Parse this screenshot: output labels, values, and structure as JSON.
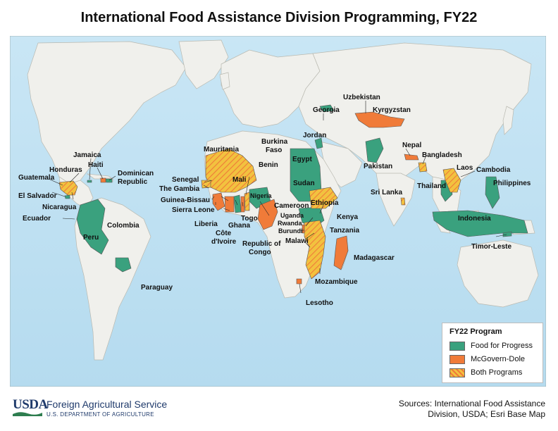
{
  "title": "International Food Assistance Division Programming, FY22",
  "colors": {
    "food_for_progress": "#3aa17e",
    "mcgovern_dole": "#f07b39",
    "both_programs": "#f2c23f",
    "ocean": "#bfe0f2",
    "land": "#f0f0ec"
  },
  "legend": {
    "title": "FY22 Program",
    "items": [
      {
        "label": "Food for Progress",
        "swatch": "solid-green"
      },
      {
        "label": "McGovern-Dole",
        "swatch": "solid-orange"
      },
      {
        "label": "Both Programs",
        "swatch": "hatched-yellow-orange"
      }
    ]
  },
  "countries": [
    {
      "name": "Georgia",
      "program": "Food for Progress"
    },
    {
      "name": "Uzbekistan",
      "program": "McGovern-Dole"
    },
    {
      "name": "Kyrgyzstan",
      "program": "McGovern-Dole"
    },
    {
      "name": "Jordan",
      "program": "Food for Progress"
    },
    {
      "name": "Egypt",
      "program": "Food for Progress"
    },
    {
      "name": "Sudan",
      "program": "Food for Progress"
    },
    {
      "name": "Pakistan",
      "program": "Food for Progress"
    },
    {
      "name": "Nepal",
      "program": "McGovern-Dole"
    },
    {
      "name": "Bangladesh",
      "program": "Both Programs"
    },
    {
      "name": "Laos",
      "program": "Both Programs"
    },
    {
      "name": "Cambodia",
      "program": "Both Programs"
    },
    {
      "name": "Sri Lanka",
      "program": "Both Programs"
    },
    {
      "name": "Thailand",
      "program": "Food for Progress"
    },
    {
      "name": "Philippines",
      "program": "Food for Progress"
    },
    {
      "name": "Indonesia",
      "program": "Food for Progress"
    },
    {
      "name": "Timor-Leste",
      "program": "Food for Progress"
    },
    {
      "name": "Mauritania",
      "program": "Both Programs"
    },
    {
      "name": "Mali",
      "program": "Both Programs"
    },
    {
      "name": "Burkina Faso",
      "program": "Both Programs"
    },
    {
      "name": "Benin",
      "program": "Both Programs"
    },
    {
      "name": "Senegal",
      "program": "Both Programs"
    },
    {
      "name": "The Gambia",
      "program": "Both Programs"
    },
    {
      "name": "Guinea-Bissau",
      "program": "McGovern-Dole"
    },
    {
      "name": "Sierra Leone",
      "program": "McGovern-Dole"
    },
    {
      "name": "Liberia",
      "program": "McGovern-Dole"
    },
    {
      "name": "Côte d'Ivoire",
      "program": "McGovern-Dole"
    },
    {
      "name": "Ghana",
      "program": "Food for Progress"
    },
    {
      "name": "Togo",
      "program": "McGovern-Dole"
    },
    {
      "name": "Nigeria",
      "program": "Food for Progress"
    },
    {
      "name": "Cameroon",
      "program": "McGovern-Dole"
    },
    {
      "name": "Republic of Congo",
      "program": "McGovern-Dole"
    },
    {
      "name": "Ethiopia",
      "program": "Both Programs"
    },
    {
      "name": "Uganda",
      "program": "Food for Progress"
    },
    {
      "name": "Kenya",
      "program": "Food for Progress"
    },
    {
      "name": "Rwanda",
      "program": "McGovern-Dole"
    },
    {
      "name": "Burundi",
      "program": "McGovern-Dole"
    },
    {
      "name": "Tanzania",
      "program": "Both Programs"
    },
    {
      "name": "Malawi",
      "program": "Both Programs"
    },
    {
      "name": "Mozambique",
      "program": "Both Programs"
    },
    {
      "name": "Madagascar",
      "program": "McGovern-Dole"
    },
    {
      "name": "Lesotho",
      "program": "McGovern-Dole"
    },
    {
      "name": "Jamaica",
      "program": "Food for Progress"
    },
    {
      "name": "Haiti",
      "program": "McGovern-Dole"
    },
    {
      "name": "Dominican Republic",
      "program": "Food for Progress"
    },
    {
      "name": "Honduras",
      "program": "Both Programs"
    },
    {
      "name": "Guatemala",
      "program": "Both Programs"
    },
    {
      "name": "El Salvador",
      "program": "Food for Progress"
    },
    {
      "name": "Nicaragua",
      "program": "Both Programs"
    },
    {
      "name": "Ecuador",
      "program": "Food for Progress"
    },
    {
      "name": "Colombia",
      "program": "Food for Progress"
    },
    {
      "name": "Peru",
      "program": "Food for Progress"
    },
    {
      "name": "Paraguay",
      "program": "Food for Progress"
    }
  ],
  "labels": {
    "georgia": "Georgia",
    "uzbekistan": "Uzbekistan",
    "kyrgyzstan": "Kyrgyzstan",
    "jordan": "Jordan",
    "egypt": "Egypt",
    "sudan": "Sudan",
    "pakistan": "Pakistan",
    "nepal": "Nepal",
    "bangladesh": "Bangladesh",
    "laos": "Laos",
    "cambodia": "Cambodia",
    "sri_lanka": "Sri Lanka",
    "thailand": "Thailand",
    "philippines": "Philippines",
    "indonesia": "Indonesia",
    "timor_leste": "Timor-Leste",
    "mauritania": "Mauritania",
    "mali": "Mali",
    "burkina": "Burkina",
    "faso": "Faso",
    "benin": "Benin",
    "senegal": "Senegal",
    "gambia": "The Gambia",
    "guinea_bissau": "Guinea-Bissau",
    "sierra_leone": "Sierra Leone",
    "liberia": "Liberia",
    "cote": "Côte",
    "divoire": "d'Ivoire",
    "ghana": "Ghana",
    "togo": "Togo",
    "nigeria": "Nigeria",
    "cameroon": "Cameroon",
    "rep_of": "Republic of",
    "congo": "Congo",
    "ethiopia": "Ethiopia",
    "uganda": "Uganda",
    "kenya": "Kenya",
    "rwanda": "Rwanda",
    "burundi": "Burundi",
    "tanzania": "Tanzania",
    "malawi": "Malawi",
    "mozambique": "Mozambique",
    "madagascar": "Madagascar",
    "lesotho": "Lesotho",
    "jamaica": "Jamaica",
    "haiti": "Haiti",
    "dominican": "Dominican",
    "republic": "Republic",
    "honduras": "Honduras",
    "guatemala": "Guatemala",
    "el_salvador": "El Salvador",
    "nicaragua": "Nicaragua",
    "ecuador": "Ecuador",
    "colombia": "Colombia",
    "peru": "Peru",
    "paraguay": "Paraguay"
  },
  "footer": {
    "logo_text": "USDA",
    "agency": "Foreign Agricultural Service",
    "department": "U.S. DEPARTMENT OF AGRICULTURE",
    "sources_line1": "Sources: International Food Assistance",
    "sources_line2": "Division, USDA; Esri Base Map"
  }
}
